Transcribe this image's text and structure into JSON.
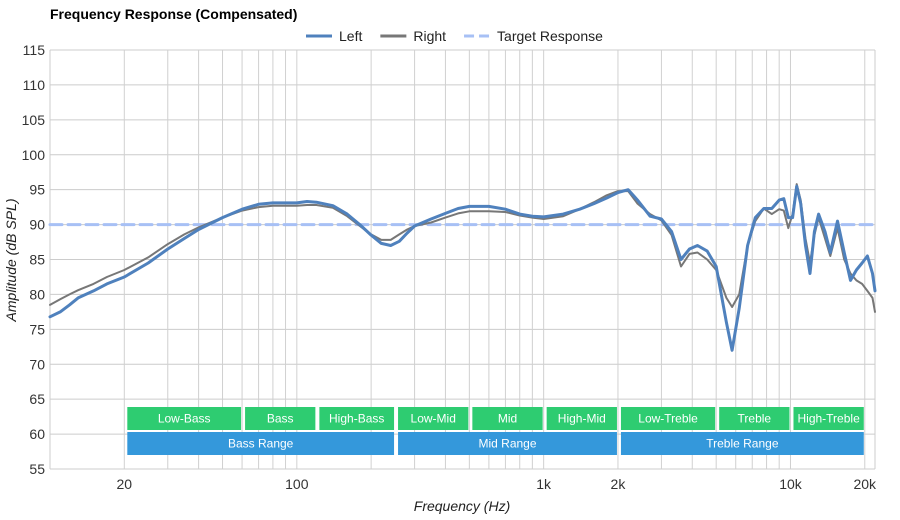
{
  "chart_data": {
    "type": "line",
    "title": "Frequency Response (Compensated)",
    "xlabel": "Frequency (Hz)",
    "ylabel": "Amplitude (dB SPL)",
    "x_scale": "log",
    "xlim": [
      10,
      22000
    ],
    "ylim": [
      55,
      115
    ],
    "grid": true,
    "legend_position": "top-center",
    "x_ticks": [
      {
        "value": 20,
        "label": "20"
      },
      {
        "value": 100,
        "label": "100"
      },
      {
        "value": 1000,
        "label": "1k"
      },
      {
        "value": 2000,
        "label": "2k"
      },
      {
        "value": 10000,
        "label": "10k"
      },
      {
        "value": 20000,
        "label": "20k"
      }
    ],
    "y_ticks": [
      55,
      60,
      65,
      70,
      75,
      80,
      85,
      90,
      95,
      100,
      105,
      110,
      115
    ],
    "series": [
      {
        "name": "Left",
        "color": "#4f81bd",
        "style": "solid",
        "points": [
          [
            10,
            76.8
          ],
          [
            11,
            77.5
          ],
          [
            12,
            78.5
          ],
          [
            13,
            79.5
          ],
          [
            15,
            80.5
          ],
          [
            17,
            81.5
          ],
          [
            20,
            82.5
          ],
          [
            25,
            84.5
          ],
          [
            30,
            86.5
          ],
          [
            35,
            88
          ],
          [
            40,
            89.3
          ],
          [
            50,
            91
          ],
          [
            60,
            92.2
          ],
          [
            70,
            92.9
          ],
          [
            80,
            93.1
          ],
          [
            90,
            93.1
          ],
          [
            100,
            93.1
          ],
          [
            110,
            93.3
          ],
          [
            120,
            93.2
          ],
          [
            140,
            92.7
          ],
          [
            160,
            91.5
          ],
          [
            180,
            90
          ],
          [
            200,
            88.5
          ],
          [
            220,
            87.3
          ],
          [
            240,
            87
          ],
          [
            260,
            87.6
          ],
          [
            280,
            88.8
          ],
          [
            300,
            89.8
          ],
          [
            350,
            90.8
          ],
          [
            400,
            91.6
          ],
          [
            450,
            92.3
          ],
          [
            500,
            92.6
          ],
          [
            600,
            92.6
          ],
          [
            700,
            92.2
          ],
          [
            800,
            91.5
          ],
          [
            900,
            91.2
          ],
          [
            1000,
            91.1
          ],
          [
            1200,
            91.5
          ],
          [
            1400,
            92.2
          ],
          [
            1600,
            93
          ],
          [
            1800,
            93.8
          ],
          [
            2000,
            94.6
          ],
          [
            2200,
            95
          ],
          [
            2400,
            93.5
          ],
          [
            2700,
            91.2
          ],
          [
            3000,
            90.8
          ],
          [
            3300,
            89
          ],
          [
            3600,
            85
          ],
          [
            3900,
            86.5
          ],
          [
            4200,
            87
          ],
          [
            4600,
            86.2
          ],
          [
            5000,
            84
          ],
          [
            5500,
            76
          ],
          [
            5800,
            72
          ],
          [
            6200,
            78
          ],
          [
            6700,
            87
          ],
          [
            7200,
            91
          ],
          [
            7800,
            92.3
          ],
          [
            8400,
            92.3
          ],
          [
            9000,
            93.5
          ],
          [
            9400,
            93.7
          ],
          [
            9800,
            91
          ],
          [
            10200,
            91
          ],
          [
            10600,
            95.5
          ],
          [
            11000,
            93
          ],
          [
            11500,
            87
          ],
          [
            12000,
            83
          ],
          [
            12500,
            89
          ],
          [
            13000,
            91.5
          ],
          [
            13800,
            89
          ],
          [
            14500,
            86
          ],
          [
            15500,
            90.5
          ],
          [
            16500,
            86
          ],
          [
            17500,
            82
          ],
          [
            18500,
            83.5
          ],
          [
            19500,
            84.5
          ],
          [
            20500,
            85.5
          ],
          [
            21500,
            83
          ],
          [
            22000,
            80.5
          ]
        ]
      },
      {
        "name": "Right",
        "color": "#777777",
        "style": "solid",
        "points": [
          [
            10,
            78.5
          ],
          [
            11,
            79.3
          ],
          [
            12,
            80
          ],
          [
            13,
            80.6
          ],
          [
            15,
            81.5
          ],
          [
            17,
            82.5
          ],
          [
            20,
            83.5
          ],
          [
            25,
            85.3
          ],
          [
            30,
            87.2
          ],
          [
            35,
            88.6
          ],
          [
            40,
            89.6
          ],
          [
            50,
            91
          ],
          [
            60,
            92
          ],
          [
            70,
            92.5
          ],
          [
            80,
            92.7
          ],
          [
            90,
            92.7
          ],
          [
            100,
            92.7
          ],
          [
            110,
            92.8
          ],
          [
            120,
            92.8
          ],
          [
            140,
            92.4
          ],
          [
            160,
            91.2
          ],
          [
            180,
            89.8
          ],
          [
            200,
            88.6
          ],
          [
            220,
            87.8
          ],
          [
            240,
            87.8
          ],
          [
            260,
            88.6
          ],
          [
            280,
            89.3
          ],
          [
            300,
            89.8
          ],
          [
            350,
            90.3
          ],
          [
            400,
            91
          ],
          [
            450,
            91.6
          ],
          [
            500,
            91.9
          ],
          [
            600,
            91.9
          ],
          [
            700,
            91.8
          ],
          [
            800,
            91.3
          ],
          [
            900,
            91
          ],
          [
            1000,
            90.8
          ],
          [
            1200,
            91.2
          ],
          [
            1400,
            92.2
          ],
          [
            1600,
            93.2
          ],
          [
            1800,
            94.2
          ],
          [
            2000,
            94.8
          ],
          [
            2200,
            94.8
          ],
          [
            2400,
            93
          ],
          [
            2700,
            91.5
          ],
          [
            3000,
            90.6
          ],
          [
            3300,
            88.5
          ],
          [
            3600,
            84
          ],
          [
            3900,
            85.8
          ],
          [
            4200,
            86
          ],
          [
            4600,
            85
          ],
          [
            5000,
            83.5
          ],
          [
            5500,
            79.5
          ],
          [
            5800,
            78.2
          ],
          [
            6200,
            80
          ],
          [
            6700,
            87
          ],
          [
            7200,
            90.5
          ],
          [
            7800,
            92.3
          ],
          [
            8400,
            91.5
          ],
          [
            9000,
            92.2
          ],
          [
            9400,
            92
          ],
          [
            9800,
            89.5
          ],
          [
            10200,
            91.5
          ],
          [
            10600,
            95.8
          ],
          [
            11000,
            93.5
          ],
          [
            11500,
            88
          ],
          [
            12000,
            84.5
          ],
          [
            12500,
            88.5
          ],
          [
            13000,
            91
          ],
          [
            13800,
            88
          ],
          [
            14500,
            85.5
          ],
          [
            15500,
            89.5
          ],
          [
            16500,
            85
          ],
          [
            17500,
            83
          ],
          [
            18500,
            82
          ],
          [
            19500,
            81.5
          ],
          [
            20500,
            80.5
          ],
          [
            21500,
            79.5
          ],
          [
            22000,
            77.5
          ]
        ]
      },
      {
        "name": "Target Response",
        "color": "#a7c0f5",
        "style": "dashed",
        "points": [
          [
            10,
            90
          ],
          [
            22000,
            90
          ]
        ]
      }
    ],
    "bands": {
      "row1": [
        {
          "label": "Low-Bass",
          "from": 20,
          "to": 60,
          "color": "#2ecc71"
        },
        {
          "label": "Bass",
          "from": 60,
          "to": 120,
          "color": "#2ecc71"
        },
        {
          "label": "High-Bass",
          "from": 120,
          "to": 250,
          "color": "#2ecc71"
        },
        {
          "label": "Low-Mid",
          "from": 250,
          "to": 500,
          "color": "#2ecc71"
        },
        {
          "label": "Mid",
          "from": 500,
          "to": 1000,
          "color": "#2ecc71"
        },
        {
          "label": "High-Mid",
          "from": 1000,
          "to": 2000,
          "color": "#2ecc71"
        },
        {
          "label": "Low-Treble",
          "from": 2000,
          "to": 5000,
          "color": "#2ecc71"
        },
        {
          "label": "Treble",
          "from": 5000,
          "to": 10000,
          "color": "#2ecc71"
        },
        {
          "label": "High-Treble",
          "from": 10000,
          "to": 20000,
          "color": "#2ecc71"
        }
      ],
      "row2": [
        {
          "label": "Bass Range",
          "from": 20,
          "to": 250,
          "color": "#3498db"
        },
        {
          "label": "Mid Range",
          "from": 250,
          "to": 2000,
          "color": "#3498db"
        },
        {
          "label": "Treble Range",
          "from": 2000,
          "to": 20000,
          "color": "#3498db"
        }
      ]
    }
  }
}
